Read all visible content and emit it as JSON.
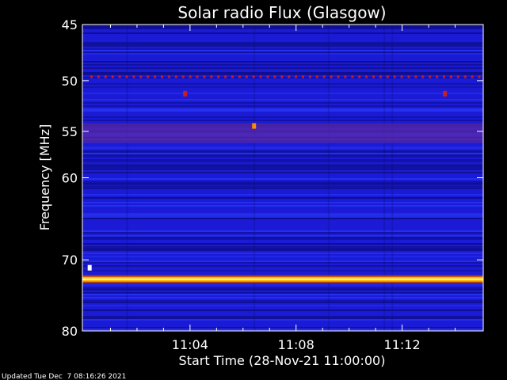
{
  "chart_data": {
    "type": "heatmap",
    "title": "Solar radio Flux (Glasgow)",
    "ylabel": "Frequency [MHz]",
    "xlabel": "Start Time (28-Nov-21 11:00:00)",
    "footer": "Updated Tue Dec  7 08:16:26 2021",
    "y_ticks": [
      45,
      50,
      55,
      60,
      70,
      80
    ],
    "x_ticks": [
      "11:04",
      "11:08",
      "11:12"
    ],
    "x_tick_minutes": [
      4,
      8,
      12
    ],
    "xlim_minutes": [
      0,
      15
    ],
    "ylim_mhz": [
      45,
      80
    ],
    "colors": {
      "background": "#000000",
      "field_dark": "#0a0a78",
      "field": "#1b1bd6",
      "field_light": "#2a3cff",
      "interference_red": "#c81e1e",
      "strong_band_core": "#ffffa0",
      "strong_band_edge": "#ffb000",
      "axis": "#ffffff"
    },
    "features": [
      {
        "kind": "dotted_line",
        "freq": 49.6,
        "color": "#c81e1e"
      },
      {
        "kind": "reddish_band",
        "freq_from": 54.2,
        "freq_to": 56.2,
        "color": "#5a2aa6"
      },
      {
        "kind": "strong_band",
        "freq": 72.6,
        "color": "#ffe000"
      },
      {
        "kind": "spot",
        "freq": 54.4,
        "minute": 6.4,
        "color": "#ff8a00"
      },
      {
        "kind": "spot",
        "freq": 71.0,
        "minute": 0.2,
        "color": "#ffffff"
      },
      {
        "kind": "spot",
        "freq": 51.2,
        "minute": 3.8,
        "color": "#c81e1e"
      },
      {
        "kind": "spot",
        "freq": 51.2,
        "minute": 13.6,
        "color": "#c81e1e"
      }
    ]
  }
}
